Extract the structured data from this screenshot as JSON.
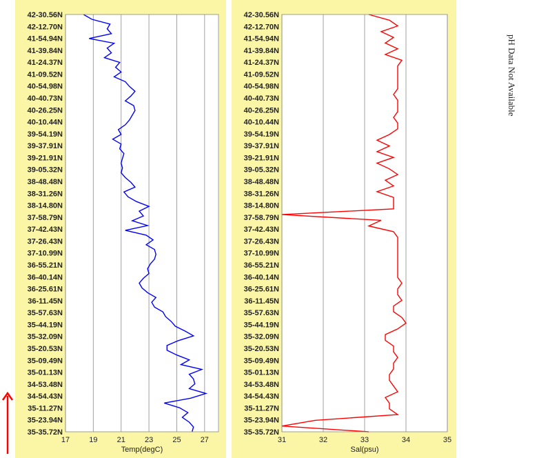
{
  "side_note": "pH Data Not Available",
  "colors": {
    "panel": "#fbf5a6",
    "plot_bg": "#ffffff",
    "temp_line": "#0000ff",
    "sal_line": "#ff0000",
    "grid": "#a0a0a0",
    "arrow": "#ff0000"
  },
  "arrow_icon": "up-arrow-icon",
  "chart_data": [
    {
      "type": "line",
      "title": "",
      "xlabel": "Temp(degC)",
      "ylabel": "",
      "xlim": [
        17,
        28
      ],
      "xticks": [
        17,
        19,
        21,
        23,
        25,
        27
      ],
      "grid": true,
      "y_tick_labels": [
        "42-30.56N",
        "42-12.70N",
        "41-54.94N",
        "41-39.84N",
        "41-24.37N",
        "41-09.52N",
        "40-54.98N",
        "40-40.73N",
        "40-26.25N",
        "40-10.44N",
        "39-54.19N",
        "39-37.91N",
        "39-21.91N",
        "39-05.32N",
        "38-48.48N",
        "38-31.26N",
        "38-14.80N",
        "37-58.79N",
        "37-42.43N",
        "37-26.43N",
        "37-10.99N",
        "36-55.21N",
        "36-40.14N",
        "36-25.61N",
        "36-11.45N",
        "35-57.63N",
        "35-44.19N",
        "35-32.09N",
        "35-20.53N",
        "35-09.49N",
        "35-01.13N",
        "34-53.48N",
        "34-54.43N",
        "35-11.27N",
        "35-23.94N",
        "35-35.72N"
      ],
      "series": [
        {
          "color": "#0000ff",
          "values": [
            18.3,
            18.9,
            20.2,
            20.0,
            20.3,
            18.7,
            20.5,
            20.0,
            20.3,
            19.8,
            20.9,
            20.6,
            21.0,
            20.5,
            21.3,
            21.6,
            22.0,
            21.7,
            21.3,
            21.9,
            22.0,
            21.8,
            21.6,
            21.3,
            20.8,
            21.0,
            20.4,
            21.0,
            20.9,
            21.2,
            21.1,
            21.0,
            21.1,
            21.0,
            21.3,
            21.7,
            22.0,
            21.2,
            21.5,
            22.1,
            23.0,
            22.3,
            22.6,
            21.8,
            22.9,
            21.3,
            22.8,
            23.3,
            22.8,
            23.4,
            23.5,
            23.4,
            23.1,
            22.9,
            23.0,
            22.6,
            22.3,
            22.5,
            22.9,
            23.5,
            23.2,
            23.4,
            24.0,
            24.2,
            24.6,
            24.9,
            25.6,
            26.2,
            25.1,
            24.3,
            24.3,
            25.0,
            25.9,
            25.3,
            26.8,
            25.9,
            26.2,
            26.3,
            25.9,
            27.1,
            26.0,
            24.1,
            25.2,
            25.8,
            25.4,
            25.9,
            26.2,
            26.1
          ]
        }
      ]
    },
    {
      "type": "line",
      "title": "",
      "xlabel": "Sal(psu)",
      "ylabel": "",
      "xlim": [
        31,
        35
      ],
      "xticks": [
        31,
        32,
        33,
        34,
        35
      ],
      "grid": true,
      "y_tick_labels": [
        "42-30.56N",
        "42-12.70N",
        "41-54.94N",
        "41-39.84N",
        "41-24.37N",
        "41-09.52N",
        "40-54.98N",
        "40-40.73N",
        "40-26.25N",
        "40-10.44N",
        "39-54.19N",
        "39-37.91N",
        "39-21.91N",
        "39-05.32N",
        "38-48.48N",
        "38-31.26N",
        "38-14.80N",
        "37-58.79N",
        "37-42.43N",
        "37-26.43N",
        "37-10.99N",
        "36-55.21N",
        "36-40.14N",
        "36-25.61N",
        "36-11.45N",
        "35-57.63N",
        "35-44.19N",
        "35-32.09N",
        "35-20.53N",
        "35-09.49N",
        "35-01.13N",
        "34-53.48N",
        "34-54.43N",
        "35-11.27N",
        "35-23.94N",
        "35-35.72N"
      ],
      "series": [
        {
          "color": "#ff0000",
          "values": [
            33.1,
            33.6,
            33.8,
            33.4,
            33.7,
            33.5,
            33.8,
            33.5,
            33.9,
            33.8,
            33.8,
            33.8,
            33.8,
            33.8,
            33.7,
            33.8,
            33.8,
            33.8,
            33.7,
            33.8,
            33.8,
            33.6,
            33.3,
            33.6,
            33.3,
            33.7,
            33.3,
            33.6,
            33.8,
            33.5,
            33.7,
            33.3,
            33.7,
            33.7,
            33.7,
            31.0,
            33.4,
            33.1,
            33.7,
            33.8,
            33.8,
            33.8,
            33.8,
            33.8,
            33.8,
            33.8,
            33.8,
            33.9,
            33.8,
            33.8,
            33.9,
            33.7,
            33.7,
            33.9,
            34.0,
            33.8,
            33.5,
            33.5,
            33.7,
            33.7,
            33.8,
            33.7,
            33.7,
            33.6,
            33.6,
            33.7,
            33.8,
            33.5,
            33.6,
            33.6,
            33.8,
            31.8,
            31.0,
            33.1
          ]
        }
      ]
    }
  ]
}
